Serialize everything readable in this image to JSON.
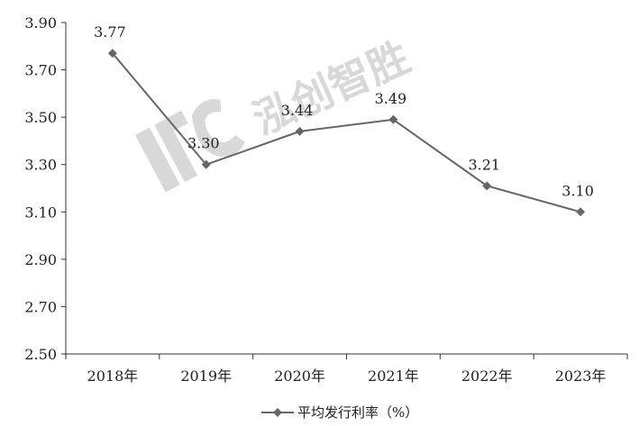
{
  "chart_data": {
    "type": "line",
    "title": "",
    "xlabel": "",
    "ylabel": "",
    "categories": [
      "2018年",
      "2019年",
      "2020年",
      "2021年",
      "2022年",
      "2023年"
    ],
    "series": [
      {
        "name": "平均发行利率（%）",
        "values": [
          3.77,
          3.3,
          3.44,
          3.49,
          3.21,
          3.1
        ],
        "value_labels": [
          "3.77",
          "3.30",
          "3.44",
          "3.49",
          "3.21",
          "3.10"
        ],
        "color": "#666666",
        "marker": "diamond"
      }
    ],
    "ylim": [
      2.5,
      3.9
    ],
    "yticks": [
      3.9,
      3.7,
      3.5,
      3.3,
      3.1,
      2.9,
      2.7,
      2.5
    ],
    "ytick_labels": [
      "3.90",
      "3.70",
      "3.50",
      "3.30",
      "3.10",
      "2.90",
      "2.70",
      "2.50"
    ],
    "grid": false,
    "legend_position": "bottom-center"
  },
  "watermark": {
    "text": "泓创智胜",
    "color": "#d8d8d8"
  }
}
